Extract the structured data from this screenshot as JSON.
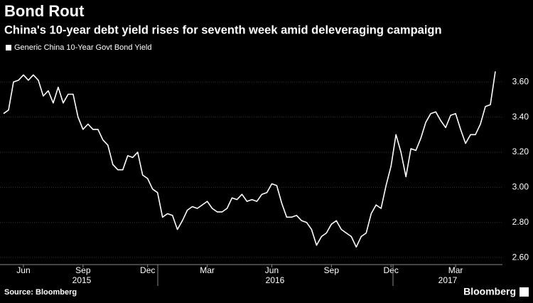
{
  "chart_data": {
    "type": "line",
    "title": "Bond Rout",
    "subtitle": "China's 10-year debt yield rises for seventh week amid deleveraging campaign",
    "source": "Source: Bloomberg",
    "brand": "Bloomberg",
    "categories": [
      null,
      null,
      null,
      null,
      "Jun",
      null,
      null,
      null,
      null,
      null,
      null,
      null,
      null,
      null,
      null,
      null,
      "Sep",
      null,
      null,
      null,
      null,
      null,
      null,
      null,
      null,
      null,
      null,
      null,
      null,
      "Dec",
      null,
      null,
      null,
      null,
      null,
      null,
      null,
      null,
      null,
      null,
      null,
      "Mar",
      null,
      null,
      null,
      null,
      null,
      null,
      null,
      null,
      null,
      null,
      null,
      null,
      "Jun",
      null,
      null,
      null,
      null,
      null,
      null,
      null,
      null,
      null,
      null,
      null,
      "Sep",
      null,
      null,
      null,
      null,
      null,
      null,
      null,
      null,
      null,
      null,
      null,
      "Dec",
      null,
      null,
      null,
      null,
      null,
      null,
      null,
      null,
      null,
      null,
      null,
      null,
      "Mar",
      null,
      null,
      null,
      null,
      null,
      null,
      null,
      null
    ],
    "x_group_labels": [
      "2015",
      "2016",
      "2017"
    ],
    "series": [
      {
        "name": "Generic China 10-Year Govt Bond Yield",
        "color": "#ffffff",
        "values": [
          3.42,
          3.44,
          3.6,
          3.61,
          3.64,
          3.61,
          3.64,
          3.61,
          3.52,
          3.55,
          3.48,
          3.57,
          3.48,
          3.53,
          3.53,
          3.4,
          3.33,
          3.36,
          3.33,
          3.33,
          3.27,
          3.24,
          3.13,
          3.1,
          3.1,
          3.18,
          3.17,
          3.2,
          3.07,
          3.05,
          2.99,
          2.97,
          2.83,
          2.85,
          2.84,
          2.76,
          2.81,
          2.87,
          2.89,
          2.88,
          2.9,
          2.92,
          2.88,
          2.86,
          2.86,
          2.88,
          2.94,
          2.93,
          2.96,
          2.92,
          2.93,
          2.92,
          2.96,
          2.97,
          3.02,
          3.01,
          2.91,
          2.83,
          2.83,
          2.84,
          2.81,
          2.8,
          2.76,
          2.67,
          2.72,
          2.74,
          2.79,
          2.81,
          2.76,
          2.74,
          2.72,
          2.66,
          2.72,
          2.74,
          2.85,
          2.9,
          2.88,
          3.01,
          3.12,
          3.3,
          3.2,
          3.06,
          3.22,
          3.21,
          3.28,
          3.37,
          3.42,
          3.43,
          3.38,
          3.34,
          3.41,
          3.42,
          3.33,
          3.25,
          3.3,
          3.3,
          3.36,
          3.46,
          3.47,
          3.66
        ]
      }
    ],
    "ylim": [
      2.56,
      3.69
    ],
    "yticks": [
      {
        "value": 2.6,
        "label": "2.60"
      },
      {
        "value": 2.8,
        "label": "2.80"
      },
      {
        "value": 3.0,
        "label": "3.00"
      },
      {
        "value": 3.2,
        "label": "3.20"
      },
      {
        "value": 3.4,
        "label": "3.40"
      },
      {
        "value": 3.6,
        "label": "3.60"
      }
    ],
    "grid": true
  }
}
